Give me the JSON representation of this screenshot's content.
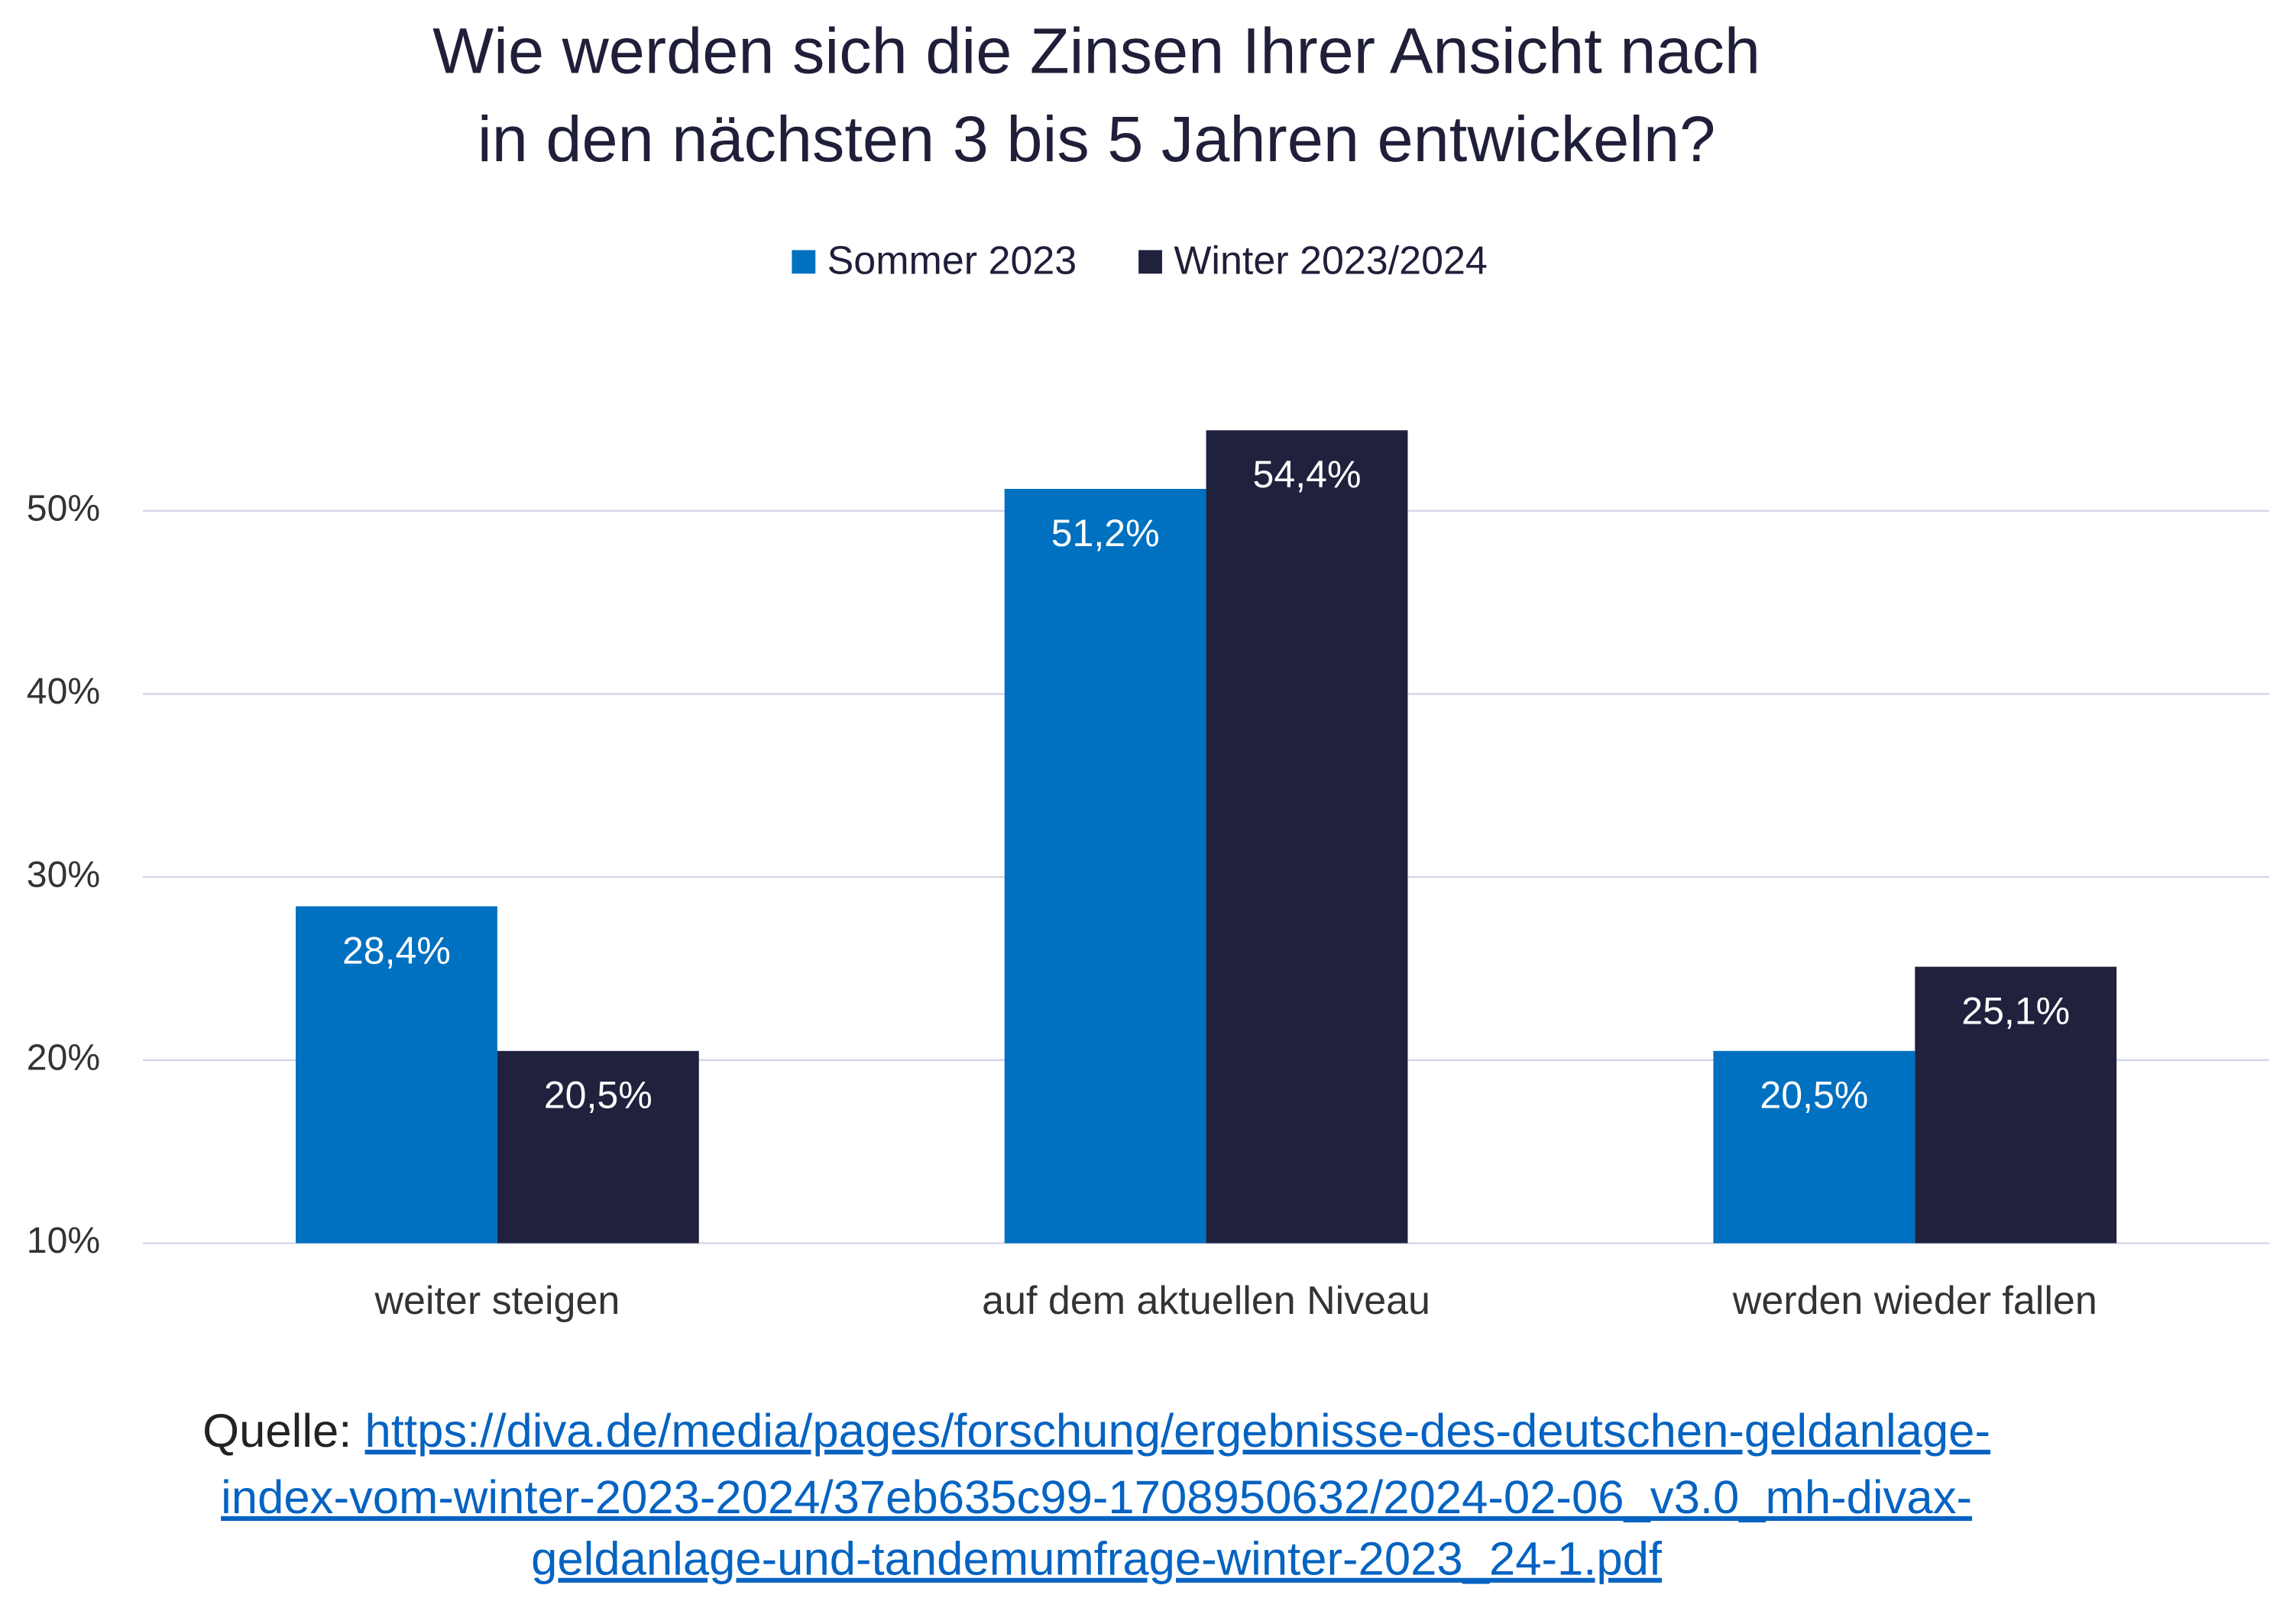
{
  "chart_data": {
    "type": "bar",
    "title_lines": [
      "Wie werden sich die Zinsen Ihrer Ansicht nach",
      "in den nächsten 3 bis 5 Jahren entwickeln?"
    ],
    "categories": [
      "weiter steigen",
      "auf dem aktuellen Niveau",
      "werden wieder fallen"
    ],
    "series": [
      {
        "name": "Sommer 2023",
        "color": "#0070c0",
        "values": [
          28.4,
          51.2,
          20.5
        ],
        "value_labels": [
          "28,4%",
          "51,2%",
          "20,5%"
        ]
      },
      {
        "name": "Winter 2023/2024",
        "color": "#20213d",
        "values": [
          20.5,
          54.4,
          25.1
        ],
        "value_labels": [
          "20,5%",
          "54,4%",
          "25,1%"
        ]
      }
    ],
    "ylim": [
      10,
      55
    ],
    "yticks": [
      {
        "value": 10,
        "label": "10%"
      },
      {
        "value": 20,
        "label": "20%"
      },
      {
        "value": 30,
        "label": "30%"
      },
      {
        "value": 40,
        "label": "40%"
      },
      {
        "value": 50,
        "label": "50%"
      }
    ],
    "grid": true,
    "legend": "top",
    "source": {
      "label": "Quelle:",
      "link_lines": [
        "https://diva.de/media/pages/forschung/ergebnisse-des-deutschen-geldanlage-",
        "index-vom-winter-2023-2024/37eb635c99-1708950632/2024-02-06_v3.0_mh-divax-",
        "geldanlage-und-tandemumfrage-winter-2023_24-1.pdf"
      ]
    }
  }
}
